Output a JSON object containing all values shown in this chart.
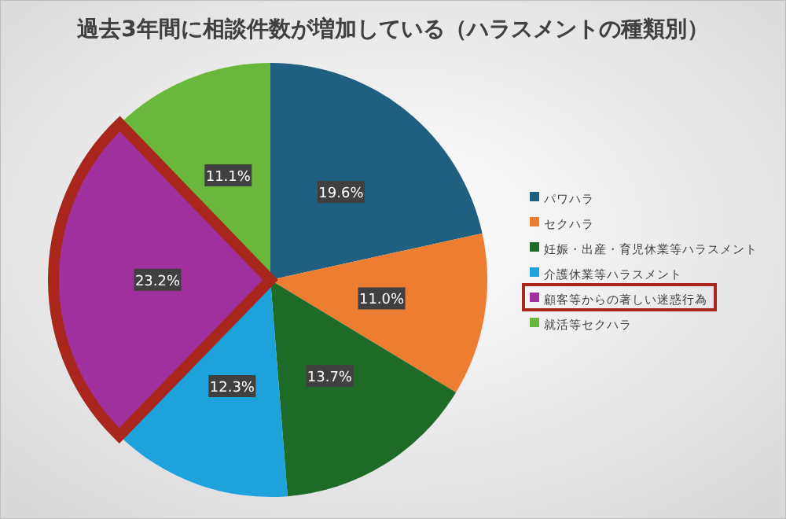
{
  "chart_data": {
    "type": "pie",
    "title": "過去3年間に相談件数が増加している（ハラスメントの種類別）",
    "categories": [
      "パワハラ",
      "セクハラ",
      "妊娠・出産・育児休業等ハラスメント",
      "介護休業等ハラスメント",
      "顧客等からの著しい迷惑行為",
      "就活等セクハラ"
    ],
    "values": [
      19.6,
      11.0,
      13.7,
      12.3,
      23.2,
      11.1
    ],
    "value_labels": [
      "19.6%",
      "11.0%",
      "13.7%",
      "12.3%",
      "23.2%",
      "11.1%"
    ],
    "colors": [
      "#1f5f7f",
      "#ed7d31",
      "#1e6b27",
      "#1ea2dc",
      "#a0309d",
      "#6ab83b"
    ],
    "legend": "right"
  }
}
